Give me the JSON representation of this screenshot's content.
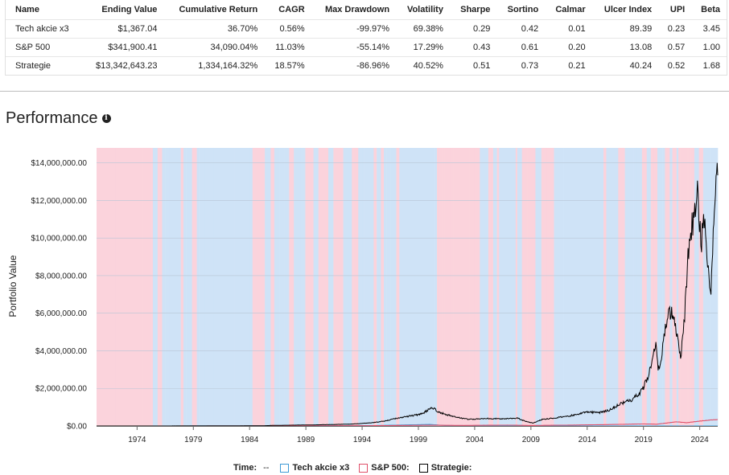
{
  "stats_table": {
    "headers": [
      "Name",
      "Ending Value",
      "Cumulative Return",
      "CAGR",
      "Max Drawdown",
      "Volatility",
      "Sharpe",
      "Sortino",
      "Calmar",
      "Ulcer Index",
      "UPI",
      "Beta"
    ],
    "rows": [
      [
        "Tech akcie x3",
        "$1,367.04",
        "36.70%",
        "0.56%",
        "-99.97%",
        "69.38%",
        "0.29",
        "0.42",
        "0.01",
        "89.39",
        "0.23",
        "3.45"
      ],
      [
        "S&P 500",
        "$341,900.41",
        "34,090.04%",
        "11.03%",
        "-55.14%",
        "17.29%",
        "0.43",
        "0.61",
        "0.20",
        "13.08",
        "0.57",
        "1.00"
      ],
      [
        "Strategie",
        "$13,342,643.23",
        "1,334,164.32%",
        "18.57%",
        "-86.96%",
        "40.52%",
        "0.51",
        "0.73",
        "0.21",
        "40.24",
        "0.52",
        "1.68"
      ]
    ]
  },
  "section": {
    "title": "Performance",
    "info_icon": "info-icon"
  },
  "legend": {
    "time_label": "Time:",
    "time_value": "--",
    "items": [
      {
        "label": "Tech akcie x3",
        "color": "#3d9ad6"
      },
      {
        "label": "S&P 500:",
        "color": "#e0506a"
      },
      {
        "label": "Strategie:",
        "color": "#000000"
      }
    ]
  },
  "chart_data": {
    "type": "line",
    "ylabel": "Portfolio Value",
    "xlim": [
      1970.4,
      2025.6
    ],
    "ylim": [
      0,
      14800000
    ],
    "x_ticks": [
      "1974",
      "1979",
      "1984",
      "1989",
      "1994",
      "1999",
      "2004",
      "2009",
      "2014",
      "2019",
      "2024"
    ],
    "y_ticks": [
      "$0.00",
      "$2,000,000.00",
      "$4,000,000.00",
      "$6,000,000.00",
      "$8,000,000.00",
      "$10,000,000.00",
      "$12,000,000.00",
      "$14,000,000.00"
    ],
    "y_tick_values": [
      0,
      2000000,
      4000000,
      6000000,
      8000000,
      10000000,
      12000000,
      14000000
    ],
    "background_regimes": {
      "colors": {
        "tech": "#cfe3f7",
        "sp500": "#fbd3dc"
      },
      "periods": [
        {
          "from": 1970.4,
          "to": 1975.4,
          "asset": "sp500"
        },
        {
          "from": 1975.4,
          "to": 1996.8,
          "asset": "tech"
        },
        {
          "from": 1996.8,
          "to": 1999.8,
          "asset": "tech"
        },
        {
          "from": 1999.8,
          "to": 2001.3,
          "asset": "tech"
        },
        {
          "from": 2001.3,
          "to": 2004.0,
          "asset": "sp500"
        },
        {
          "from": 2004.0,
          "to": 2008.2,
          "asset": "tech"
        },
        {
          "from": 2008.2,
          "to": 2009.4,
          "asset": "sp500"
        },
        {
          "from": 2009.4,
          "to": 2022.1,
          "asset": "tech"
        },
        {
          "from": 2022.1,
          "to": 2023.0,
          "asset": "sp500"
        },
        {
          "from": 2023.0,
          "to": 2025.6,
          "asset": "tech"
        }
      ]
    },
    "series": [
      {
        "name": "Tech akcie x3",
        "color": "#3d9ad6",
        "x": [
          1970.4,
          1985,
          1995,
          2000,
          2002,
          2008,
          2015,
          2020,
          2025.6
        ],
        "y": [
          1000,
          3000,
          20000,
          80000,
          500,
          300,
          800,
          1200,
          1367
        ]
      },
      {
        "name": "S&P 500",
        "color": "#e0506a",
        "x": [
          1970.4,
          1980,
          1990,
          1995,
          2000,
          2003,
          2007,
          2009,
          2013,
          2016,
          2019,
          2020.2,
          2021.9,
          2022.8,
          2024,
          2025,
          2025.6
        ],
        "y": [
          1000,
          2000,
          8000,
          15000,
          40000,
          28000,
          45000,
          25000,
          50000,
          75000,
          110000,
          95000,
          220000,
          175000,
          260000,
          320000,
          341900
        ]
      },
      {
        "name": "Strategie",
        "color": "#000000",
        "x": [
          1970.4,
          1975,
          1980,
          1985,
          1986,
          1990,
          1993,
          1995,
          1996,
          1997,
          1998,
          1999,
          1999.5,
          2000.2,
          2000.8,
          2001.5,
          2002.5,
          2003.5,
          2005,
          2006.5,
          2007.8,
          2008.5,
          2009.2,
          2010,
          2011,
          2012,
          2013,
          2014,
          2015,
          2016,
          2017,
          2018,
          2018.9,
          2019.5,
          2020.1,
          2020.3,
          2020.6,
          2021,
          2021.5,
          2021.9,
          2022.1,
          2022.3,
          2022.6,
          2022.9,
          2023.2,
          2023.5,
          2023.8,
          2024.1,
          2024.4,
          2024.7,
          2025.0,
          2025.2,
          2025.4,
          2025.6
        ],
        "y": [
          1000,
          1500,
          3000,
          8000,
          30000,
          60000,
          100000,
          180000,
          260000,
          400000,
          500000,
          600000,
          700000,
          1000000,
          750000,
          600000,
          450000,
          350000,
          400000,
          380000,
          420000,
          250000,
          150000,
          350000,
          420000,
          500000,
          600000,
          750000,
          700000,
          850000,
          1200000,
          1400000,
          1900000,
          2800000,
          4300000,
          3000000,
          3600000,
          5500000,
          6200000,
          5000000,
          4300000,
          3700000,
          5300000,
          8500000,
          10500000,
          11000000,
          13000000,
          9500000,
          11000000,
          8800000,
          6900000,
          10000000,
          12500000,
          13342643
        ]
      }
    ]
  }
}
